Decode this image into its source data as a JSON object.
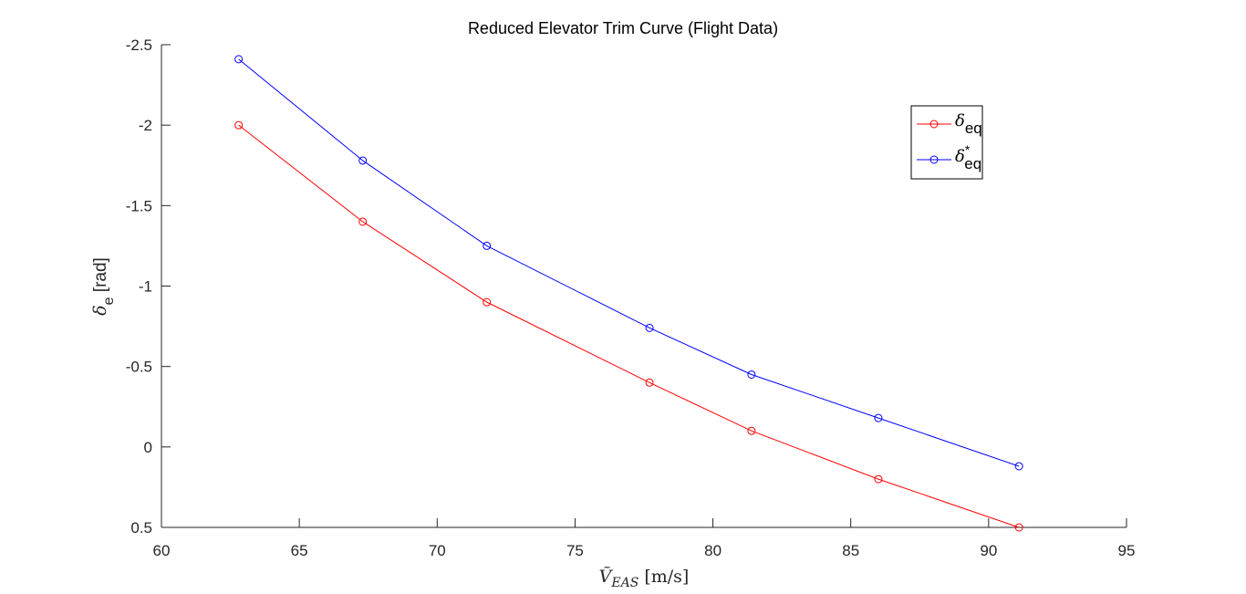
{
  "chart_data": {
    "type": "line",
    "title": "Reduced Elevator Trim Curve (Flight Data)",
    "xlabel": {
      "symbol": "Ṽ",
      "subscript": "EAS",
      "unit": "[m/s]"
    },
    "ylabel": {
      "symbol": "δ",
      "subscript": "e",
      "unit": "[rad]"
    },
    "xlim": [
      60,
      95
    ],
    "ylim": [
      -2.5,
      0.5
    ],
    "y_reversed": true,
    "x_ticks": [
      60,
      65,
      70,
      75,
      80,
      85,
      90,
      95
    ],
    "x_tick_labels": [
      "60",
      "65",
      "70",
      "75",
      "80",
      "85",
      "90",
      "95"
    ],
    "y_ticks": [
      -2.5,
      -2,
      -1.5,
      -1,
      -0.5,
      0,
      0.5
    ],
    "y_tick_labels": [
      "-2.5",
      "-2",
      "-1.5",
      "-1",
      "-0.5",
      "0",
      "0.5"
    ],
    "grid": false,
    "legend_position": "top-right",
    "series": [
      {
        "name": "δ_eq",
        "legend_symbol": "δ",
        "legend_subscript": "eq",
        "legend_superscript": "",
        "color": "#ff0000",
        "marker": "circle",
        "x": [
          62.8,
          67.3,
          71.8,
          77.7,
          81.4,
          86.0,
          91.1
        ],
        "y": [
          -2.0,
          -1.4,
          -0.9,
          -0.4,
          -0.1,
          0.2,
          0.5
        ]
      },
      {
        "name": "δ*_eq",
        "legend_symbol": "δ",
        "legend_subscript": "eq",
        "legend_superscript": "*",
        "color": "#0000ff",
        "marker": "circle",
        "x": [
          62.8,
          67.3,
          71.8,
          77.7,
          81.4,
          86.0,
          91.1
        ],
        "y": [
          -2.41,
          -1.78,
          -1.25,
          -0.74,
          -0.45,
          -0.18,
          0.12
        ]
      }
    ]
  }
}
